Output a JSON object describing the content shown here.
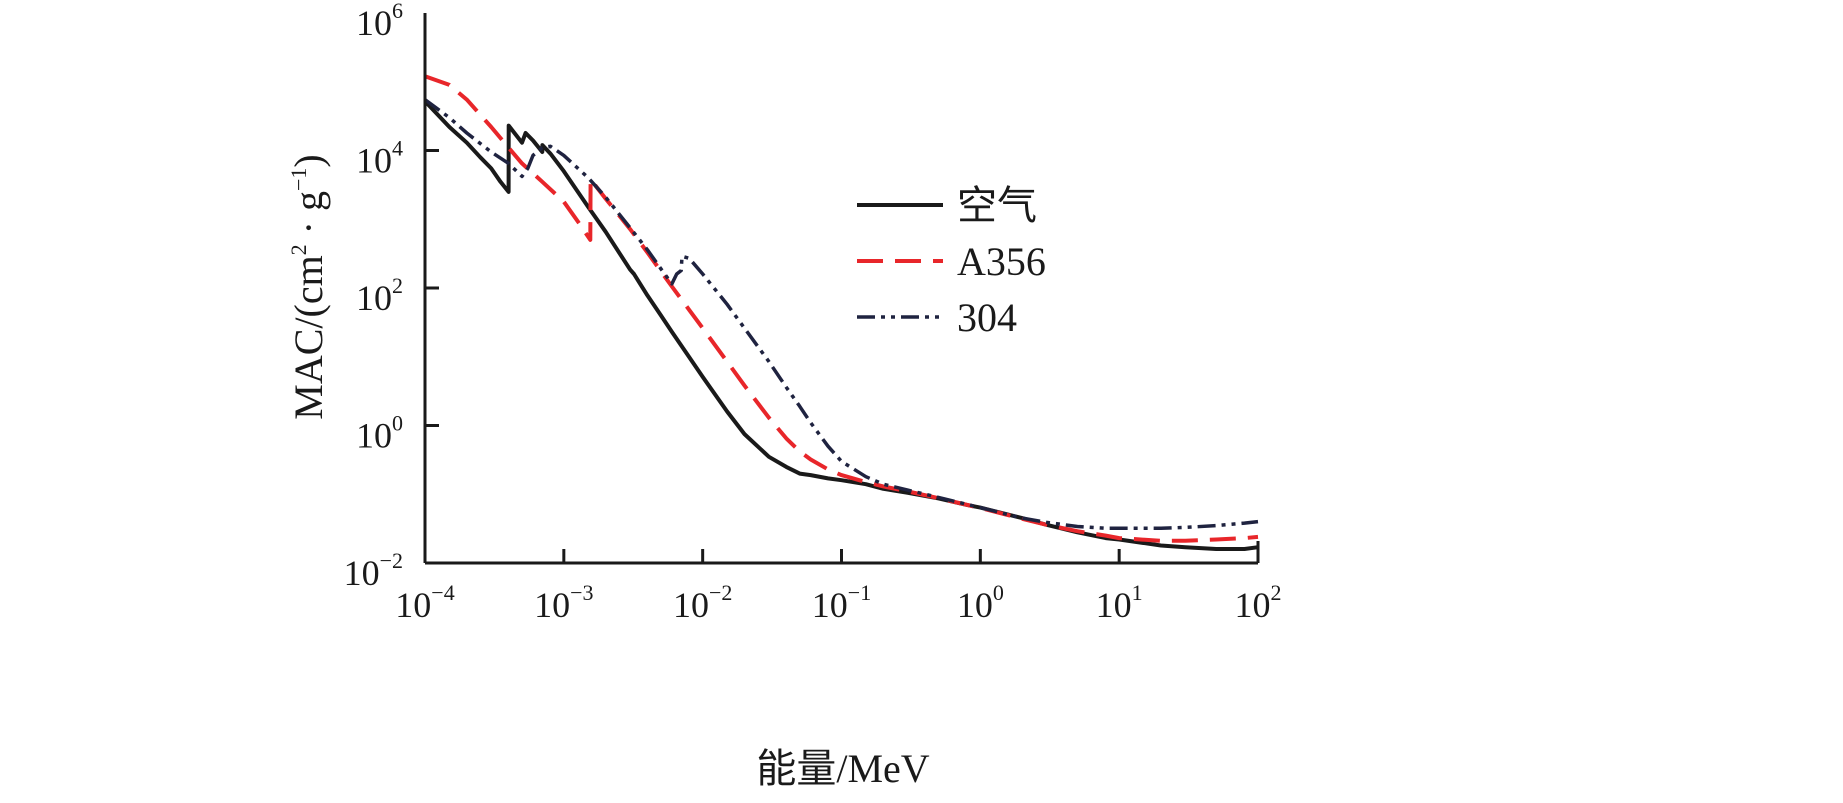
{
  "chart_data": {
    "type": "line",
    "xlabel": "能量/MeV",
    "ylabel": {
      "main": "MAC/(cm",
      "sup1": "2",
      "mid": " · g",
      "sup2": "−1",
      "end": ")"
    },
    "x_scale": "log",
    "y_scale": "log",
    "xlim": [
      0.0001,
      100
    ],
    "ylim": [
      0.01,
      1000000
    ],
    "grid": false,
    "legend_position": "upper-right-center",
    "x_ticks": [
      {
        "value": 0.0001,
        "base": "10",
        "exp": "−4"
      },
      {
        "value": 0.001,
        "base": "10",
        "exp": "−3"
      },
      {
        "value": 0.01,
        "base": "10",
        "exp": "−2"
      },
      {
        "value": 0.1,
        "base": "10",
        "exp": "−1"
      },
      {
        "value": 1,
        "base": "10",
        "exp": "0"
      },
      {
        "value": 10,
        "base": "10",
        "exp": "1"
      },
      {
        "value": 100,
        "base": "10",
        "exp": "2"
      }
    ],
    "y_ticks": [
      {
        "value": 0.01,
        "base": "10",
        "exp": "−2"
      },
      {
        "value": 1,
        "base": "10",
        "exp": "0"
      },
      {
        "value": 100,
        "base": "10",
        "exp": "2"
      },
      {
        "value": 10000,
        "base": "10",
        "exp": "4"
      },
      {
        "value": 1000000,
        "base": "10",
        "exp": "6"
      }
    ],
    "series": [
      {
        "name": "空气",
        "color": "#1a1a1a",
        "dash": "solid",
        "points": [
          [
            0.0001,
            52000
          ],
          [
            0.00015,
            22000
          ],
          [
            0.0002,
            13000
          ],
          [
            0.00025,
            8000
          ],
          [
            0.0003,
            5500
          ],
          [
            0.00035,
            3500
          ],
          [
            0.0004,
            2500
          ],
          [
            0.000401,
            23000
          ],
          [
            0.0005,
            13000
          ],
          [
            0.00053,
            18000
          ],
          [
            0.0006,
            14000
          ],
          [
            0.0007,
            9500
          ],
          [
            0.000701,
            12000
          ],
          [
            0.0008,
            9000
          ],
          [
            0.001,
            5000
          ],
          [
            0.0015,
            1500
          ],
          [
            0.002,
            660
          ],
          [
            0.003,
            185
          ],
          [
            0.0032,
            160
          ],
          [
            0.004,
            78
          ],
          [
            0.005,
            40
          ],
          [
            0.006,
            23
          ],
          [
            0.008,
            9.9
          ],
          [
            0.01,
            5.1
          ],
          [
            0.015,
            1.6
          ],
          [
            0.02,
            0.75
          ],
          [
            0.03,
            0.35
          ],
          [
            0.04,
            0.25
          ],
          [
            0.05,
            0.2
          ],
          [
            0.06,
            0.19
          ],
          [
            0.08,
            0.17
          ],
          [
            0.1,
            0.16
          ],
          [
            0.15,
            0.14
          ],
          [
            0.2,
            0.12
          ],
          [
            0.3,
            0.105
          ],
          [
            0.5,
            0.087
          ],
          [
            0.8,
            0.07
          ],
          [
            1,
            0.064
          ],
          [
            2,
            0.045
          ],
          [
            3,
            0.036
          ],
          [
            5,
            0.028
          ],
          [
            8,
            0.023
          ],
          [
            10,
            0.022
          ],
          [
            20,
            0.018
          ],
          [
            30,
            0.017
          ],
          [
            50,
            0.016
          ],
          [
            80,
            0.016
          ],
          [
            100,
            0.017
          ]
        ]
      },
      {
        "name": "A356",
        "color": "#e8262a",
        "dash": "dashed",
        "points": [
          [
            0.0001,
            120000
          ],
          [
            0.00015,
            90000
          ],
          [
            0.0002,
            55000
          ],
          [
            0.0003,
            22000
          ],
          [
            0.0004,
            11000
          ],
          [
            0.0005,
            6500
          ],
          [
            0.0007,
            3500
          ],
          [
            0.001,
            1800
          ],
          [
            0.0013,
            850
          ],
          [
            0.00155,
            500
          ],
          [
            0.00156,
            3800
          ],
          [
            0.002,
            2000
          ],
          [
            0.003,
            720
          ],
          [
            0.004,
            330
          ],
          [
            0.005,
            175
          ],
          [
            0.006,
            105
          ],
          [
            0.008,
            48
          ],
          [
            0.01,
            26
          ],
          [
            0.015,
            8.5
          ],
          [
            0.02,
            3.8
          ],
          [
            0.03,
            1.3
          ],
          [
            0.04,
            0.65
          ],
          [
            0.05,
            0.42
          ],
          [
            0.06,
            0.32
          ],
          [
            0.08,
            0.23
          ],
          [
            0.1,
            0.19
          ],
          [
            0.15,
            0.15
          ],
          [
            0.2,
            0.13
          ],
          [
            0.3,
            0.11
          ],
          [
            0.5,
            0.088
          ],
          [
            1,
            0.063
          ],
          [
            2,
            0.044
          ],
          [
            3,
            0.036
          ],
          [
            5,
            0.029
          ],
          [
            8,
            0.025
          ],
          [
            10,
            0.023
          ],
          [
            20,
            0.021
          ],
          [
            30,
            0.021
          ],
          [
            50,
            0.022
          ],
          [
            80,
            0.023
          ],
          [
            100,
            0.024
          ]
        ]
      },
      {
        "name": "304",
        "color": "#1f2340",
        "dash": "dash-dot",
        "points": [
          [
            0.0001,
            55000
          ],
          [
            0.00015,
            30000
          ],
          [
            0.0002,
            18000
          ],
          [
            0.0003,
            9500
          ],
          [
            0.0004,
            6500
          ],
          [
            0.0005,
            4200
          ],
          [
            0.00055,
            5500
          ],
          [
            0.0006,
            8500
          ],
          [
            0.0007,
            11000
          ],
          [
            0.0008,
            11500
          ],
          [
            0.001,
            8500
          ],
          [
            0.0015,
            4000
          ],
          [
            0.002,
            2100
          ],
          [
            0.003,
            750
          ],
          [
            0.004,
            360
          ],
          [
            0.005,
            190
          ],
          [
            0.006,
            115
          ],
          [
            0.0065,
            160
          ],
          [
            0.007,
            180
          ],
          [
            0.0071,
            290
          ],
          [
            0.008,
            270
          ],
          [
            0.01,
            160
          ],
          [
            0.015,
            58
          ],
          [
            0.02,
            26
          ],
          [
            0.03,
            8.5
          ],
          [
            0.04,
            3.6
          ],
          [
            0.05,
            1.9
          ],
          [
            0.06,
            1.1
          ],
          [
            0.08,
            0.5
          ],
          [
            0.1,
            0.3
          ],
          [
            0.15,
            0.18
          ],
          [
            0.2,
            0.14
          ],
          [
            0.3,
            0.115
          ],
          [
            0.5,
            0.09
          ],
          [
            1,
            0.064
          ],
          [
            2,
            0.045
          ],
          [
            3,
            0.039
          ],
          [
            5,
            0.034
          ],
          [
            8,
            0.032
          ],
          [
            10,
            0.032
          ],
          [
            20,
            0.032
          ],
          [
            30,
            0.033
          ],
          [
            50,
            0.035
          ],
          [
            80,
            0.038
          ],
          [
            100,
            0.04
          ]
        ]
      }
    ]
  }
}
